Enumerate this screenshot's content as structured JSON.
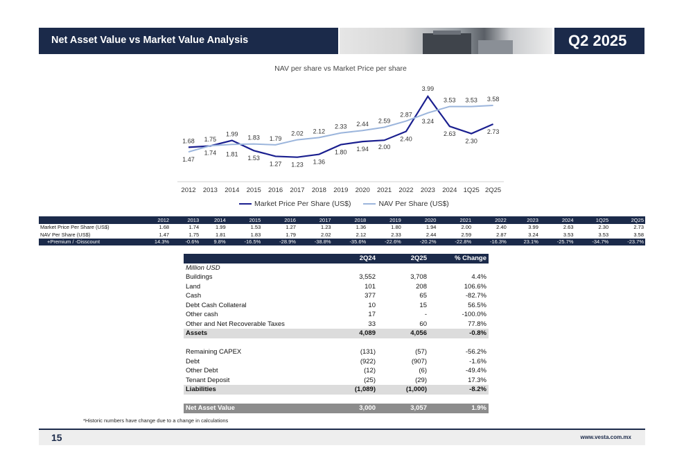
{
  "header": {
    "title": "Net Asset Value vs Market Value Analysis",
    "period": "Q2 2025"
  },
  "chart_data": {
    "type": "line",
    "title": "NAV per share vs Market Price per share",
    "categories": [
      "2012",
      "2013",
      "2014",
      "2015",
      "2016",
      "2017",
      "2018",
      "2019",
      "2020",
      "2021",
      "2022",
      "2023",
      "2024",
      "1Q25",
      "2Q25"
    ],
    "series": [
      {
        "name": "Market Price  Per Share (US$)",
        "color": "#1a1f8f",
        "values": [
          1.68,
          1.74,
          1.99,
          1.53,
          1.27,
          1.23,
          1.36,
          1.8,
          1.94,
          2.0,
          2.4,
          3.99,
          2.63,
          2.3,
          2.73
        ],
        "labels": [
          "1.68",
          "1.74",
          "1.99",
          "1.53",
          "1.27",
          "1.23",
          "1.36",
          "1.80",
          "1.94",
          "2.00",
          "2.40",
          "3.99",
          "2.63",
          "2.30",
          "2.73"
        ]
      },
      {
        "name": "NAV Per Share   (US$)",
        "color": "#9bb5dc",
        "values": [
          1.47,
          1.75,
          1.81,
          1.83,
          1.79,
          2.02,
          2.12,
          2.33,
          2.44,
          2.59,
          2.87,
          3.24,
          3.53,
          3.53,
          3.58
        ],
        "labels": [
          "1.47",
          "1.75",
          "1.81",
          "1.83",
          "1.79",
          "2.02",
          "2.12",
          "2.33",
          "2.44",
          "2.59",
          "2.87",
          "3.24",
          "3.53",
          "3.53",
          "3.58"
        ]
      }
    ],
    "ylim": [
      0,
      4.2
    ],
    "legend": "bottom"
  },
  "history": {
    "years": [
      "2012",
      "2013",
      "2014",
      "2015",
      "2016",
      "2017",
      "2018",
      "2019",
      "2020",
      "2021",
      "2022",
      "2023",
      "2024",
      "1Q25",
      "2Q25"
    ],
    "rows": [
      {
        "label": "Market Price  Per Share (US$)",
        "values": [
          "1.68",
          "1.74",
          "1.99",
          "1.53",
          "1.27",
          "1.23",
          "1.36",
          "1.80",
          "1.94",
          "2.00",
          "2.40",
          "3.99",
          "2.63",
          "2.30",
          "2.73"
        ]
      },
      {
        "label": "NAV Per Share   (US$)",
        "values": [
          "1.47",
          "1.75",
          "1.81",
          "1.83",
          "1.79",
          "2.02",
          "2.12",
          "2.33",
          "2.44",
          "2.59",
          "2.87",
          "3.24",
          "3.53",
          "3.53",
          "3.58"
        ]
      }
    ],
    "premium": {
      "label": "+Premium / -Disscount",
      "values": [
        "14.3%",
        "-0.6%",
        "9.8%",
        "-16.5%",
        "-28.9%",
        "-38.8%",
        "-35.6%",
        "-22.6%",
        "-20.2%",
        "-22.8%",
        "-16.3%",
        "23.1%",
        "-25.7%",
        "-34.7%",
        "-23.7%"
      ]
    }
  },
  "nav_table": {
    "headers": [
      "2Q24",
      "2Q25",
      "% Change"
    ],
    "unit_label": "Million USD",
    "assets": [
      {
        "label": "Buildings",
        "v1": "3,552",
        "v2": "3,708",
        "chg": "4.4%"
      },
      {
        "label": "Land",
        "v1": "101",
        "v2": "208",
        "chg": "106.6%"
      },
      {
        "label": "Cash",
        "v1": "377",
        "v2": "65",
        "chg": "-82.7%"
      },
      {
        "label": "Debt Cash Collateral",
        "v1": "10",
        "v2": "15",
        "chg": "56.5%"
      },
      {
        "label": "Other cash",
        "v1": "17",
        "v2": "-",
        "chg": "-100.0%"
      },
      {
        "label": "Other and Net Recoverable Taxes",
        "v1": "33",
        "v2": "60",
        "chg": "77.8%"
      }
    ],
    "assets_total": {
      "label": "Assets",
      "v1": "4,089",
      "v2": "4,056",
      "chg": "-0.8%"
    },
    "liabilities": [
      {
        "label": "Remaining CAPEX",
        "v1": "(131)",
        "v2": "(57)",
        "chg": "-56.2%"
      },
      {
        "label": "Debt",
        "v1": "(922)",
        "v2": "(907)",
        "chg": "-1.6%"
      },
      {
        "label": "Other Debt",
        "v1": "(12)",
        "v2": "(6)",
        "chg": "-49.4%"
      },
      {
        "label": "Tenant Deposit",
        "v1": "(25)",
        "v2": "(29)",
        "chg": "17.3%"
      }
    ],
    "liabilities_total": {
      "label": "Liabilities",
      "v1": "(1,089)",
      "v2": "(1,000)",
      "chg": "-8.2%"
    },
    "nav_total": {
      "label": "Net Asset Value",
      "v1": "3,000",
      "v2": "3,057",
      "chg": "1.9%"
    }
  },
  "footnote": "*Historic numbers have change due to a change in calculations",
  "footer": {
    "page": "15",
    "website": "www.vesta.com.mx"
  }
}
